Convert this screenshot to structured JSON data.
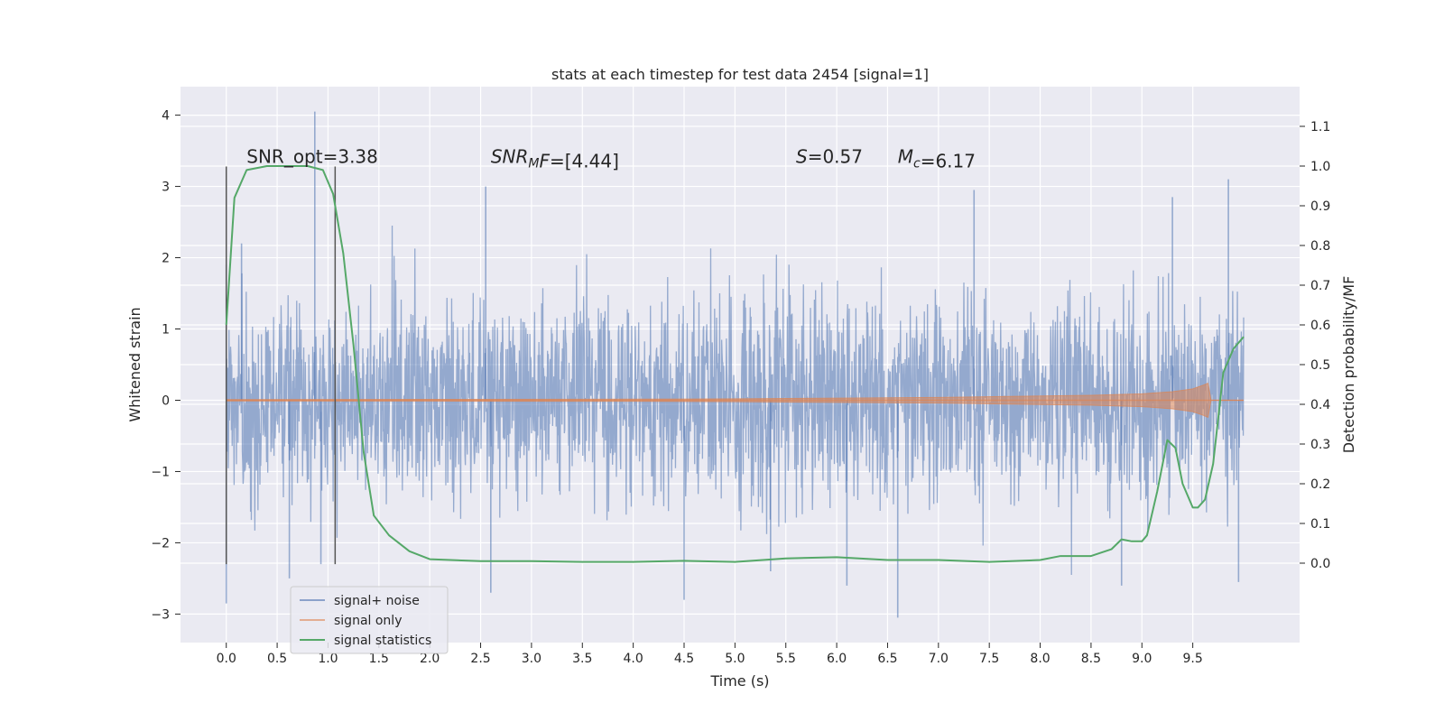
{
  "chart_data": {
    "type": "line",
    "title": "stats at each timestep for test data 2454 [signal=1]",
    "xlabel": "Time (s)",
    "ylabel_left": "Whitened strain",
    "ylabel_right": "Detection probability/MF",
    "xlim": [
      -0.45,
      10.55
    ],
    "ylim_left": [
      -3.4,
      4.4
    ],
    "ylim_right": [
      -0.2,
      1.2
    ],
    "x_ticks": [
      0.0,
      0.5,
      1.0,
      1.5,
      2.0,
      2.5,
      3.0,
      3.5,
      4.0,
      4.5,
      5.0,
      5.5,
      6.0,
      6.5,
      7.0,
      7.5,
      8.0,
      8.5,
      9.0,
      9.5
    ],
    "x_tick_labels": [
      "0.0",
      "0.5",
      "1.0",
      "1.5",
      "2.0",
      "2.5",
      "3.0",
      "3.5",
      "4.0",
      "4.5",
      "5.0",
      "5.5",
      "6.0",
      "6.5",
      "7.0",
      "7.5",
      "8.0",
      "8.5",
      "9.0",
      "9.5"
    ],
    "y_left_ticks": [
      -3,
      -2,
      -1,
      0,
      1,
      2,
      3,
      4
    ],
    "y_left_tick_labels": [
      "−3",
      "−2",
      "−1",
      "0",
      "1",
      "2",
      "3",
      "4"
    ],
    "y_right_ticks": [
      0.0,
      0.1,
      0.2,
      0.3,
      0.4,
      0.5,
      0.6,
      0.7,
      0.8,
      0.9,
      1.0,
      1.1
    ],
    "y_right_tick_labels": [
      "0.0",
      "0.1",
      "0.2",
      "0.3",
      "0.4",
      "0.5",
      "0.6",
      "0.7",
      "0.8",
      "0.9",
      "1.0",
      "1.1"
    ],
    "grid": true,
    "legend_position": "lower-left",
    "vertical_lines": [
      {
        "x": 0.0,
        "y_range": [
          -2.3,
          3.28
        ]
      },
      {
        "x": 1.07,
        "y_range": [
          -2.3,
          3.28
        ]
      }
    ],
    "annotations": [
      {
        "x": 0.2,
        "y": 3.28,
        "parts": [
          {
            "text": "SNR_opt=3.38"
          }
        ]
      },
      {
        "x": 2.6,
        "y": 3.28,
        "parts": [
          {
            "text": "SNR",
            "italic": true
          },
          {
            "text": "M",
            "italic": true,
            "sub": true
          },
          {
            "text": "F",
            "italic": true
          },
          {
            "text": "=[4.44]"
          }
        ]
      },
      {
        "x": 5.6,
        "y": 3.28,
        "parts": [
          {
            "text": "S",
            "italic": true
          },
          {
            "text": "=0.57"
          }
        ]
      },
      {
        "x": 6.6,
        "y": 3.28,
        "parts": [
          {
            "text": "M",
            "italic": true
          },
          {
            "text": "c",
            "italic": true,
            "sub": true
          },
          {
            "text": "=6.17"
          }
        ]
      }
    ],
    "series": [
      {
        "name": "signal+ noise",
        "axis": "left",
        "style": "noise",
        "color": "#4c72b0",
        "x_range": [
          0.0,
          10.0
        ],
        "typical_range": [
          -1.6,
          1.6
        ],
        "spikes": [
          [
            0.0,
            1.9
          ],
          [
            0.0,
            -2.85
          ],
          [
            0.15,
            2.2
          ],
          [
            0.87,
            4.05
          ],
          [
            0.93,
            -2.3
          ],
          [
            0.62,
            -2.5
          ],
          [
            2.55,
            3.0
          ],
          [
            2.6,
            -2.7
          ],
          [
            4.5,
            -2.8
          ],
          [
            5.35,
            -2.4
          ],
          [
            6.1,
            -2.6
          ],
          [
            6.6,
            -3.05
          ],
          [
            7.35,
            2.95
          ],
          [
            8.8,
            -2.6
          ],
          [
            9.3,
            2.85
          ],
          [
            9.85,
            3.1
          ],
          [
            9.95,
            -2.55
          ]
        ]
      },
      {
        "name": "signal only",
        "axis": "left",
        "style": "chirp",
        "color": "#dd8452",
        "x": [
          0.0,
          2.0,
          4.0,
          5.0,
          6.0,
          7.0,
          8.0,
          8.5,
          9.0,
          9.3,
          9.5,
          9.6,
          9.65,
          9.68,
          10.0
        ],
        "amplitude": [
          0.01,
          0.012,
          0.015,
          0.02,
          0.03,
          0.04,
          0.06,
          0.07,
          0.09,
          0.12,
          0.16,
          0.21,
          0.24,
          0.0,
          0.0
        ]
      },
      {
        "name": "signal statistics",
        "axis": "right",
        "style": "line",
        "color": "#55a868",
        "x": [
          0.0,
          0.08,
          0.2,
          0.4,
          0.6,
          0.8,
          0.95,
          1.05,
          1.15,
          1.25,
          1.35,
          1.45,
          1.6,
          1.8,
          2.0,
          2.5,
          3.0,
          3.5,
          4.0,
          4.5,
          5.0,
          5.5,
          6.0,
          6.5,
          7.0,
          7.5,
          8.0,
          8.2,
          8.5,
          8.7,
          8.8,
          8.9,
          9.0,
          9.05,
          9.15,
          9.25,
          9.33,
          9.4,
          9.5,
          9.55,
          9.62,
          9.7,
          9.8,
          9.9,
          10.0
        ],
        "y": [
          0.6,
          0.92,
          0.99,
          1.0,
          1.0,
          1.0,
          0.99,
          0.93,
          0.78,
          0.55,
          0.28,
          0.12,
          0.07,
          0.03,
          0.01,
          0.005,
          0.005,
          0.003,
          0.003,
          0.006,
          0.003,
          0.012,
          0.015,
          0.008,
          0.008,
          0.003,
          0.008,
          0.018,
          0.018,
          0.035,
          0.06,
          0.055,
          0.055,
          0.07,
          0.18,
          0.31,
          0.29,
          0.2,
          0.14,
          0.14,
          0.16,
          0.25,
          0.48,
          0.54,
          0.57
        ]
      }
    ]
  }
}
